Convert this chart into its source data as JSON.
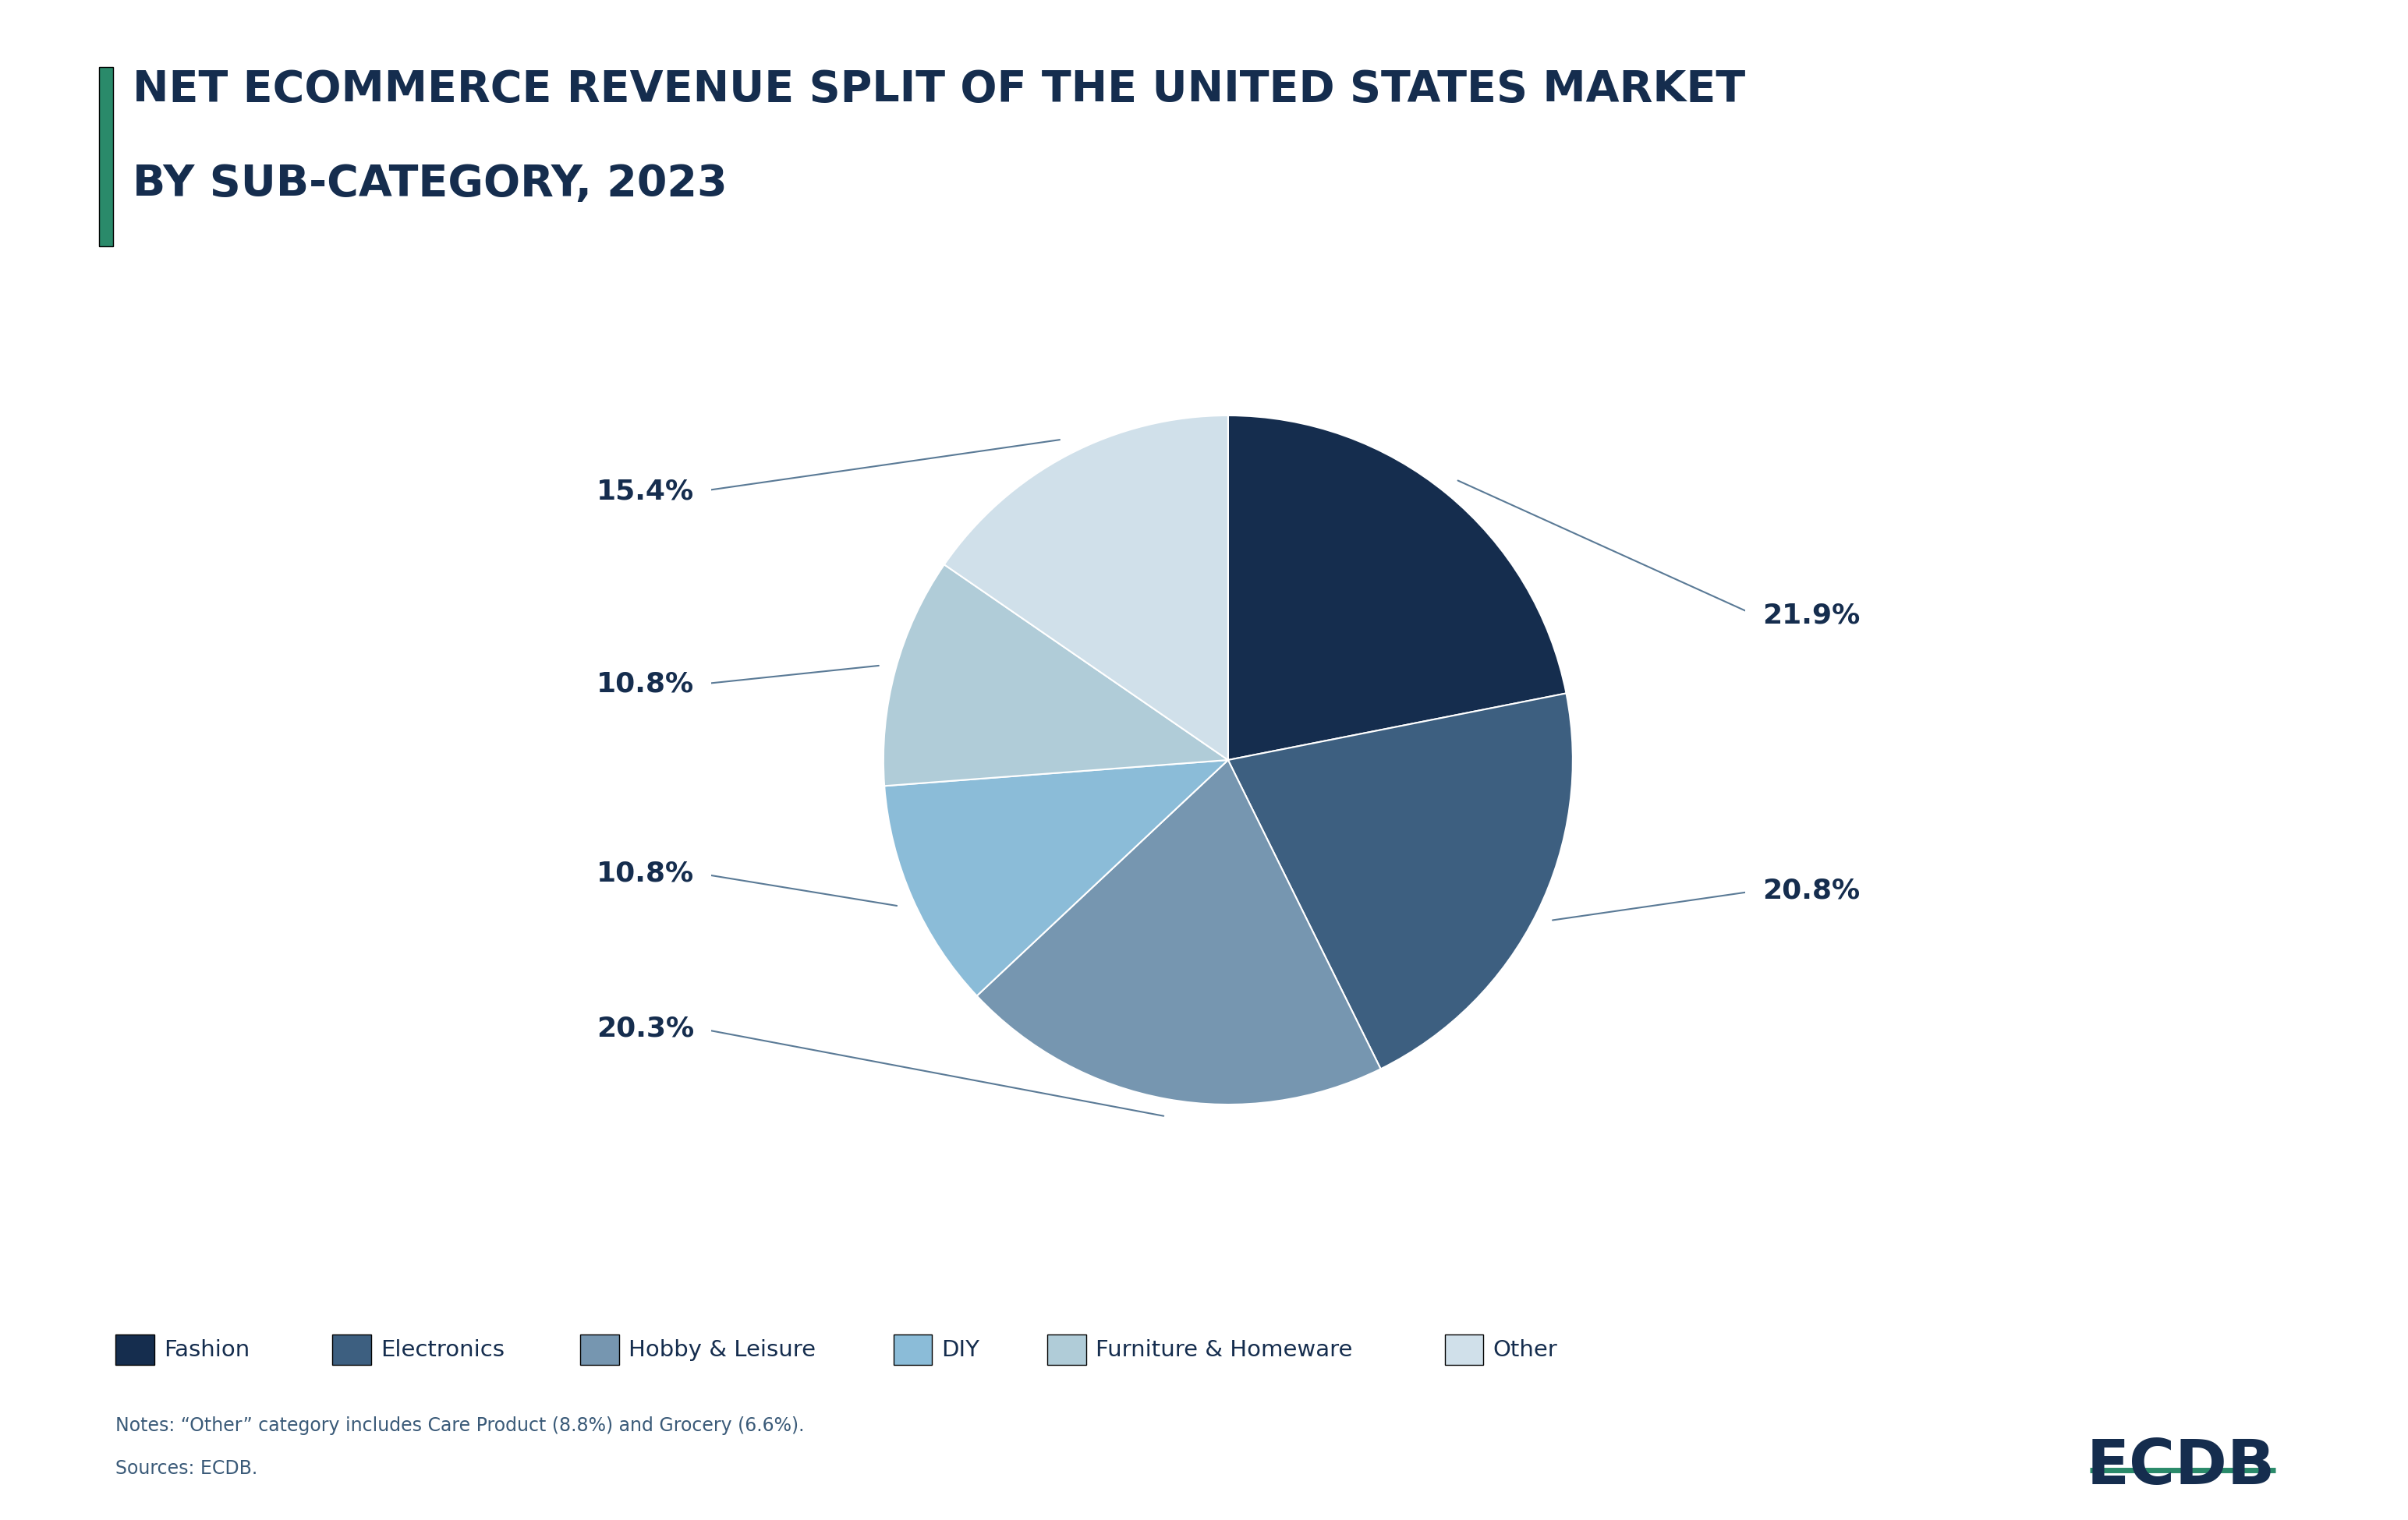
{
  "title_line1": "NET ECOMMERCE REVENUE SPLIT OF THE UNITED STATES MARKET",
  "title_line2": "BY SUB-CATEGORY, 2023",
  "categories": [
    "Fashion",
    "Electronics",
    "Hobby & Leisure",
    "DIY",
    "Furniture & Homeware",
    "Other"
  ],
  "values": [
    21.9,
    20.8,
    20.3,
    10.8,
    10.8,
    15.4
  ],
  "labels": [
    "21.9%",
    "20.8%",
    "20.3%",
    "10.8%",
    "10.8%",
    "15.4%"
  ],
  "colors": [
    "#152d4e",
    "#3d5f80",
    "#7696b0",
    "#8bbcd8",
    "#b0ccd8",
    "#d0e0ea"
  ],
  "background_color": "#ffffff",
  "title_color": "#152d4e",
  "label_color": "#152d4e",
  "line_color": "#5a7a96",
  "note_text1": "Notes: “Other” category includes Care Product (8.8%) and Grocery (6.6%).",
  "note_text2": "Sources: ECDB.",
  "ecdb_color": "#152d4e",
  "accent_color": "#2a8a6a",
  "legend_labels": [
    "Fashion",
    "Electronics",
    "Hobby & Leisure",
    "DIY",
    "Furniture & Homeware",
    "Other"
  ]
}
